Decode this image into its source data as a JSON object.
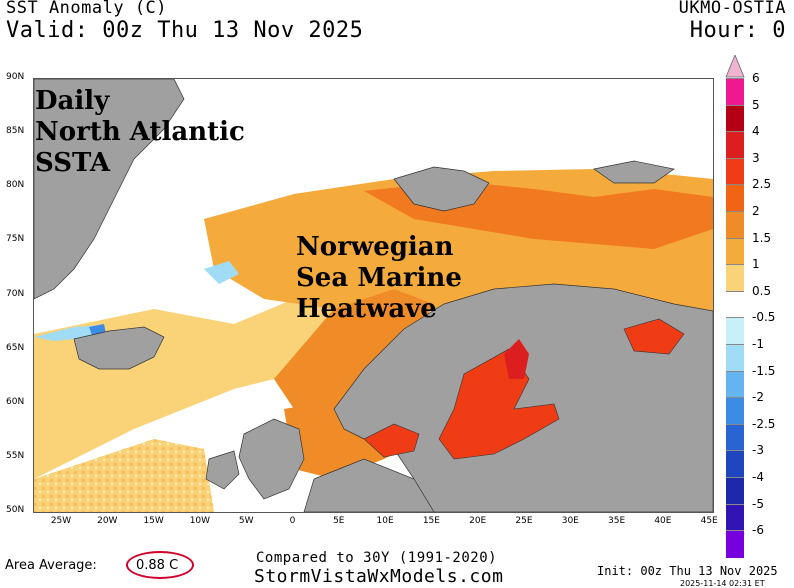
{
  "header": {
    "title": "SST Anomaly (C)",
    "valid": "Valid: 00z Thu 13 Nov 2025",
    "source": "UKMO-OSTIA",
    "hour": "Hour: 0"
  },
  "annotations": {
    "left": [
      "Daily",
      "North Atlantic",
      "SSTA"
    ],
    "center": [
      "Norwegian",
      "Sea Marine",
      "Heatwave"
    ]
  },
  "map": {
    "lat_labels": [
      "90N",
      "85N",
      "80N",
      "75N",
      "70N",
      "65N",
      "60N",
      "55N",
      "50N"
    ],
    "lon_labels": [
      "25W",
      "20W",
      "15W",
      "10W",
      "5W",
      "0",
      "5E",
      "10E",
      "15E",
      "20E",
      "25E",
      "30E",
      "35E",
      "40E",
      "45E"
    ],
    "land_color": "#a0a0a0",
    "ice_color": "#ffffff"
  },
  "colorbar": {
    "labels": [
      "6",
      "5",
      "4",
      "3",
      "2.5",
      "2",
      "1.5",
      "1",
      "0.5",
      "-0.5",
      "-1",
      "-1.5",
      "-2",
      "-2.5",
      "-3",
      "-4",
      "-5",
      "-6"
    ],
    "colors": [
      "#f01890",
      "#b40014",
      "#dc1e1e",
      "#f03c14",
      "#f06414",
      "#f08c28",
      "#f5aa3c",
      "#fad278",
      "#ffffff",
      "#c8f0fa",
      "#a0dcf5",
      "#64b4f0",
      "#3c8ce6",
      "#2864d2",
      "#1e46be",
      "#1e28aa",
      "#3214b4",
      "#7800dc"
    ],
    "top_arrow_color": "#f0b4d2",
    "bottom_arrow_color": "#c8a0f0"
  },
  "footer": {
    "area_label": "Area Average:",
    "area_value": "0.88 C",
    "compared": "Compared to 30Y (1991-2020)",
    "site": "StormVistaWxModels.com",
    "init": "Init: 00z Thu 13 Nov 2025",
    "timestamp": "2025-11-14 02:31 ET"
  }
}
